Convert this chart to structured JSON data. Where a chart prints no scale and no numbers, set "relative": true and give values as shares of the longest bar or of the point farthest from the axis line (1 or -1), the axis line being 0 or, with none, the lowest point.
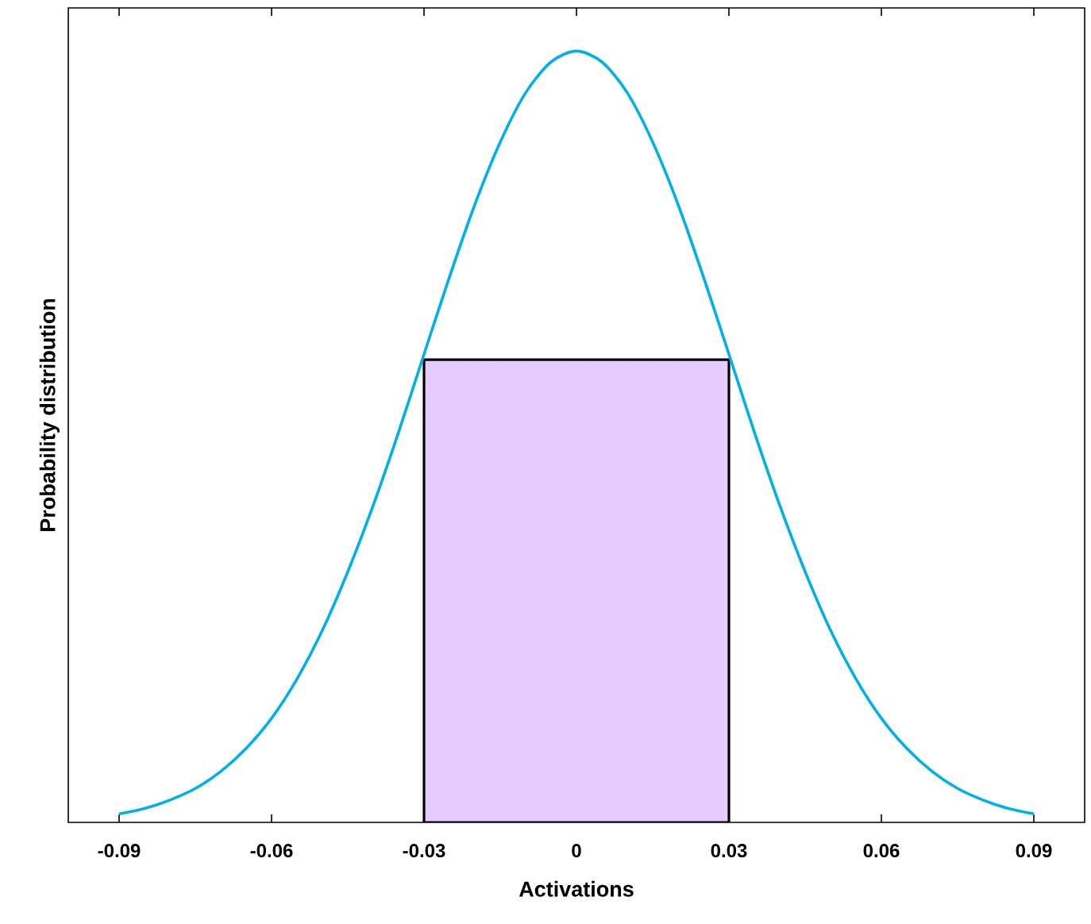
{
  "chart_data": {
    "type": "line",
    "xlabel": "Activations",
    "ylabel": "Probability distribution",
    "relative": true,
    "xlim": [
      -0.1,
      0.1
    ],
    "xticks": [
      -0.09,
      -0.06,
      -0.03,
      0,
      0.03,
      0.06,
      0.09
    ],
    "marker": "none",
    "line_style": "solid",
    "series": [
      {
        "type": "area",
        "color": "#e5cdff",
        "x": [
          -0.03,
          -0.03,
          0.03,
          0.03
        ],
        "values": [
          0,
          0.6,
          0.6,
          0
        ]
      },
      {
        "color": "#00b0e6",
        "x": [
          -0.09,
          -0.085,
          -0.08,
          -0.075,
          -0.07,
          -0.065,
          -0.06,
          -0.055,
          -0.05,
          -0.045,
          -0.04,
          -0.035,
          -0.03,
          -0.025,
          -0.02,
          -0.015,
          -0.01,
          -0.005,
          0,
          0.005,
          0.01,
          0.015,
          0.02,
          0.025,
          0.03,
          0.035,
          0.04,
          0.045,
          0.05,
          0.055,
          0.06,
          0.065,
          0.07,
          0.075,
          0.08,
          0.085,
          0.09
        ],
        "values": [
          0.011,
          0.018,
          0.029,
          0.044,
          0.066,
          0.096,
          0.135,
          0.186,
          0.249,
          0.325,
          0.411,
          0.506,
          0.607,
          0.707,
          0.801,
          0.882,
          0.946,
          0.986,
          1,
          0.986,
          0.946,
          0.882,
          0.801,
          0.707,
          0.607,
          0.506,
          0.411,
          0.325,
          0.249,
          0.186,
          0.135,
          0.096,
          0.066,
          0.044,
          0.029,
          0.018,
          0.011
        ]
      }
    ]
  }
}
